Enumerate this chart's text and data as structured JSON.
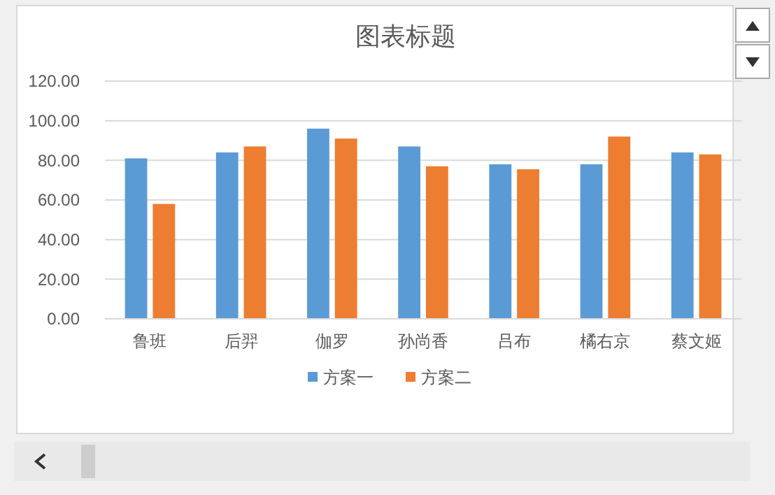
{
  "chart_data": {
    "type": "bar",
    "title": "图表标题",
    "categories": [
      "鲁班",
      "后羿",
      "伽罗",
      "孙尚香",
      "吕布",
      "橘右京",
      "蔡文姬"
    ],
    "series": [
      {
        "name": "方案一",
        "color": "#5b9bd5",
        "values": [
          81,
          84,
          96,
          87,
          78,
          78,
          84
        ]
      },
      {
        "name": "方案二",
        "color": "#ed7d31",
        "values": [
          58,
          87,
          91,
          77,
          75.5,
          92,
          83
        ]
      }
    ],
    "ylim": [
      0,
      120
    ],
    "yticks": [
      {
        "value": 0,
        "label": "0.00"
      },
      {
        "value": 20,
        "label": "20.00"
      },
      {
        "value": 40,
        "label": "40.00"
      },
      {
        "value": 60,
        "label": "60.00"
      },
      {
        "value": 80,
        "label": "80.00"
      },
      {
        "value": 100,
        "label": "100.00"
      },
      {
        "value": 120,
        "label": "120.00"
      }
    ],
    "grid": "y",
    "legend": "bottom"
  }
}
